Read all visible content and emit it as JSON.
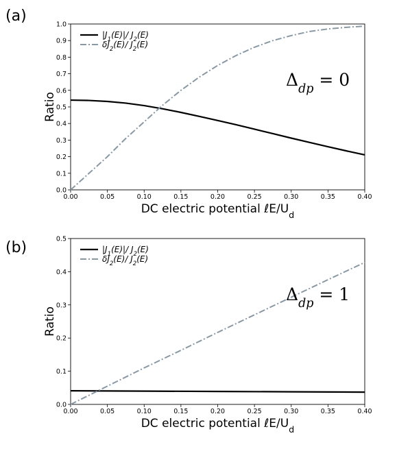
{
  "chart_data": [
    {
      "type": "line",
      "panel_label": "(a)",
      "xlabel": "DC electric potential ℓE/U_d",
      "ylabel": "Ratio",
      "xlim": [
        0,
        0.4
      ],
      "ylim": [
        0,
        1.0
      ],
      "x_ticks": [
        "0.00",
        "0.05",
        "0.10",
        "0.15",
        "0.20",
        "0.25",
        "0.30",
        "0.35",
        "0.40"
      ],
      "y_ticks": [
        "0.0",
        "0.1",
        "0.2",
        "0.3",
        "0.4",
        "0.5",
        "0.6",
        "0.7",
        "0.8",
        "0.9",
        "1.0"
      ],
      "annotation": "Δdp = 0",
      "legend_position": "top-left",
      "grid": false,
      "series": [
        {
          "name": "|J1(E)|/ J2(E)",
          "style": "solid",
          "color": "#000000",
          "x": [
            0,
            0.025,
            0.05,
            0.075,
            0.1,
            0.125,
            0.15,
            0.175,
            0.2,
            0.225,
            0.25,
            0.275,
            0.3,
            0.325,
            0.35,
            0.375,
            0.4
          ],
          "y": [
            0.541,
            0.539,
            0.533,
            0.523,
            0.508,
            0.489,
            0.467,
            0.443,
            0.418,
            0.393,
            0.366,
            0.339,
            0.312,
            0.286,
            0.26,
            0.235,
            0.211
          ]
        },
        {
          "name": "δJ2(E)/ J2(E)",
          "style": "dashdot",
          "color": "#8799a5",
          "x": [
            0,
            0.025,
            0.05,
            0.075,
            0.1,
            0.125,
            0.15,
            0.175,
            0.2,
            0.225,
            0.25,
            0.275,
            0.3,
            0.325,
            0.35,
            0.375,
            0.4
          ],
          "y": [
            0,
            0.1,
            0.2,
            0.31,
            0.41,
            0.51,
            0.6,
            0.68,
            0.75,
            0.81,
            0.86,
            0.9,
            0.93,
            0.955,
            0.97,
            0.98,
            0.987
          ]
        }
      ]
    },
    {
      "type": "line",
      "panel_label": "(b)",
      "xlabel": "DC electric potential ℓE/U_d",
      "ylabel": "Ratio",
      "xlim": [
        0,
        0.4
      ],
      "ylim": [
        0,
        0.5
      ],
      "x_ticks": [
        "0.00",
        "0.05",
        "0.10",
        "0.15",
        "0.20",
        "0.25",
        "0.30",
        "0.35",
        "0.40"
      ],
      "y_ticks": [
        "0.0",
        "0.1",
        "0.2",
        "0.3",
        "0.4",
        "0.5"
      ],
      "annotation": "Δdp = 1",
      "legend_position": "top-left",
      "grid": false,
      "series": [
        {
          "name": "|J1(E)|/ J2(E)",
          "style": "solid",
          "color": "#000000",
          "x": [
            0,
            0.1,
            0.2,
            0.3,
            0.4
          ],
          "y": [
            0.041,
            0.04,
            0.039,
            0.038,
            0.037
          ]
        },
        {
          "name": "δJ2(E)/ J2(E)",
          "style": "dashdot",
          "color": "#8799a5",
          "x": [
            0,
            0.05,
            0.1,
            0.15,
            0.2,
            0.25,
            0.3,
            0.35,
            0.4
          ],
          "y": [
            0,
            0.055,
            0.11,
            0.163,
            0.217,
            0.27,
            0.323,
            0.376,
            0.428
          ]
        }
      ]
    }
  ]
}
